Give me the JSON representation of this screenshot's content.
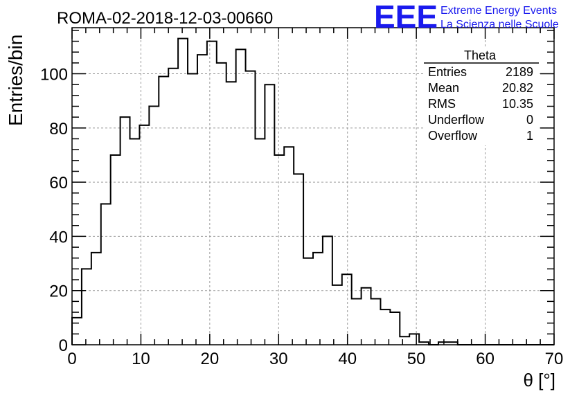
{
  "title": "ROMA-02-2018-12-03-00660",
  "logo": {
    "text": "EEE",
    "line1": "Extreme Energy Events",
    "line2": "La Scienza nelle Scuole",
    "color": "#1a1aee"
  },
  "stats": {
    "name": "Theta",
    "rows": [
      {
        "label": "Entries",
        "value": "2189"
      },
      {
        "label": "Mean",
        "value": "20.82"
      },
      {
        "label": "RMS",
        "value": "10.35"
      },
      {
        "label": "Underflow",
        "value": "0"
      },
      {
        "label": "Overflow",
        "value": "1"
      }
    ]
  },
  "chart_data": {
    "type": "bar",
    "title": "ROMA-02-2018-12-03-00660",
    "xlabel": "θ [°]",
    "ylabel": "Entries/bin",
    "xlim": [
      0,
      70
    ],
    "ylim": [
      0,
      117
    ],
    "xticks": [
      0,
      10,
      20,
      30,
      40,
      50,
      60,
      70
    ],
    "yticks": [
      0,
      20,
      40,
      60,
      80,
      100
    ],
    "bin_width": 1.4,
    "bin_edges_start": 0,
    "values": [
      10,
      28,
      34,
      52,
      70,
      84,
      76,
      81,
      88,
      99,
      102,
      113,
      100,
      107,
      112,
      104,
      97,
      109,
      101,
      76,
      96,
      70,
      73,
      63,
      32,
      34,
      40,
      22,
      26,
      17,
      21,
      17,
      13,
      12,
      3,
      4,
      1,
      0,
      1,
      1,
      0,
      0,
      0,
      0,
      0,
      0,
      0,
      0,
      0,
      0
    ],
    "grid": true,
    "line_color": "#000000"
  }
}
